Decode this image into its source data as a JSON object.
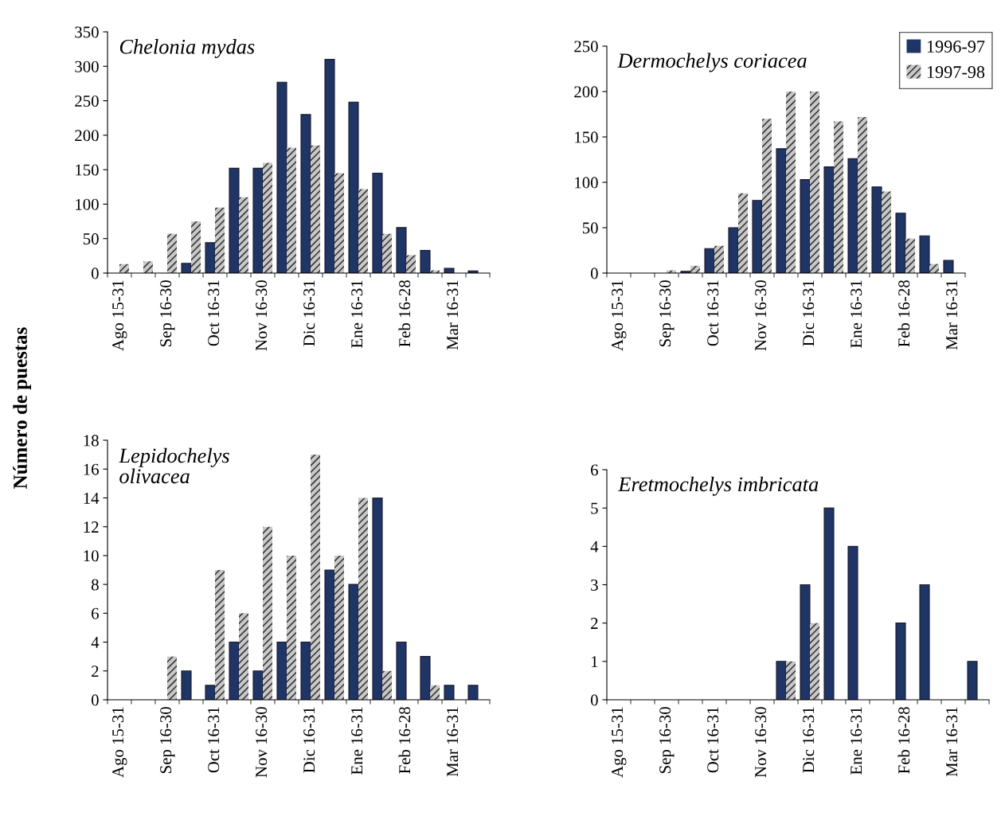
{
  "chart_data": [
    {
      "type": "bar",
      "title": "Chelonia mydas",
      "ylabel": "Número de puestas",
      "categories": [
        "Ago 15-31",
        null,
        "Sep 16-30",
        null,
        "Oct 16-31",
        null,
        "Nov 16-30",
        null,
        "Dic 16-31",
        null,
        "Ene 16-31",
        null,
        "Feb 16-28",
        null,
        "Mar 16-31",
        null
      ],
      "series": [
        {
          "color": "#1f3566",
          "values": [
            null,
            null,
            null,
            14,
            44,
            152,
            152,
            277,
            230,
            310,
            248,
            145,
            66,
            33,
            7,
            3
          ]
        },
        {
          "color": "#c8c8c8",
          "values": [
            13,
            17,
            57,
            75,
            95,
            110,
            160,
            182,
            185,
            145,
            122,
            57,
            26,
            4,
            null,
            null
          ]
        }
      ],
      "ylim": [
        0,
        350
      ],
      "yticks": [
        0,
        50,
        100,
        150,
        200,
        250,
        300,
        350
      ],
      "grid": false,
      "legend": false
    },
    {
      "type": "bar",
      "title": "Dermochelys coriacea",
      "categories": [
        "Ago 15-31",
        null,
        "Sep 16-30",
        null,
        "Oct 16-31",
        null,
        "Nov 16-30",
        null,
        "Dic 16-31",
        null,
        "Ene 16-31",
        null,
        "Feb 16-28",
        null,
        "Mar 16-31"
      ],
      "series": [
        {
          "name": "1996-97",
          "color": "#1f3566",
          "values": [
            null,
            null,
            null,
            2,
            27,
            50,
            80,
            137,
            103,
            117,
            126,
            95,
            66,
            41,
            14
          ]
        },
        {
          "name": "1997-98",
          "color": "#c8c8c8",
          "values": [
            null,
            null,
            3,
            8,
            30,
            88,
            170,
            200,
            200,
            167,
            172,
            90,
            38,
            10,
            null
          ]
        }
      ],
      "ylim": [
        0,
        250
      ],
      "yticks": [
        0,
        50,
        100,
        150,
        200,
        250
      ],
      "grid": false,
      "legend": "top right"
    },
    {
      "type": "bar",
      "title": "Lepidochelys\nolivacea",
      "categories": [
        "Ago 15-31",
        null,
        "Sep 16-30",
        null,
        "Oct 16-31",
        null,
        "Nov 16-30",
        null,
        "Dic 16-31",
        null,
        "Ene 16-31",
        null,
        "Feb 16-28",
        null,
        "Mar 16-31",
        null
      ],
      "series": [
        {
          "color": "#1f3566",
          "values": [
            null,
            null,
            null,
            2,
            1,
            4,
            2,
            4,
            4,
            9,
            8,
            14,
            4,
            3,
            1,
            1
          ]
        },
        {
          "color": "#c8c8c8",
          "values": [
            null,
            null,
            3,
            null,
            9,
            6,
            12,
            10,
            17,
            10,
            14,
            2,
            null,
            1,
            null,
            null
          ]
        }
      ],
      "ylim": [
        0,
        18
      ],
      "yticks": [
        0,
        2,
        4,
        6,
        8,
        10,
        12,
        14,
        16,
        18
      ],
      "grid": false,
      "legend": false
    },
    {
      "type": "bar",
      "title": "Eretmochelys imbricata",
      "categories": [
        "Ago 15-31",
        null,
        "Sep 16-30",
        null,
        "Oct 16-31",
        null,
        "Nov 16-30",
        null,
        "Dic 16-31",
        null,
        "Ene 16-31",
        null,
        "Feb 16-28",
        null,
        "Mar 16-31",
        null
      ],
      "series": [
        {
          "color": "#1f3566",
          "values": [
            null,
            null,
            null,
            null,
            null,
            null,
            null,
            1,
            3,
            5,
            4,
            null,
            2,
            3,
            null,
            1
          ]
        },
        {
          "color": "#c8c8c8",
          "values": [
            null,
            null,
            null,
            null,
            null,
            null,
            null,
            1,
            2,
            null,
            null,
            null,
            null,
            null,
            null,
            null
          ]
        }
      ],
      "ylim": [
        0,
        6
      ],
      "yticks": [
        0,
        1,
        2,
        3,
        4,
        5,
        6
      ],
      "grid": false,
      "legend": false
    }
  ]
}
